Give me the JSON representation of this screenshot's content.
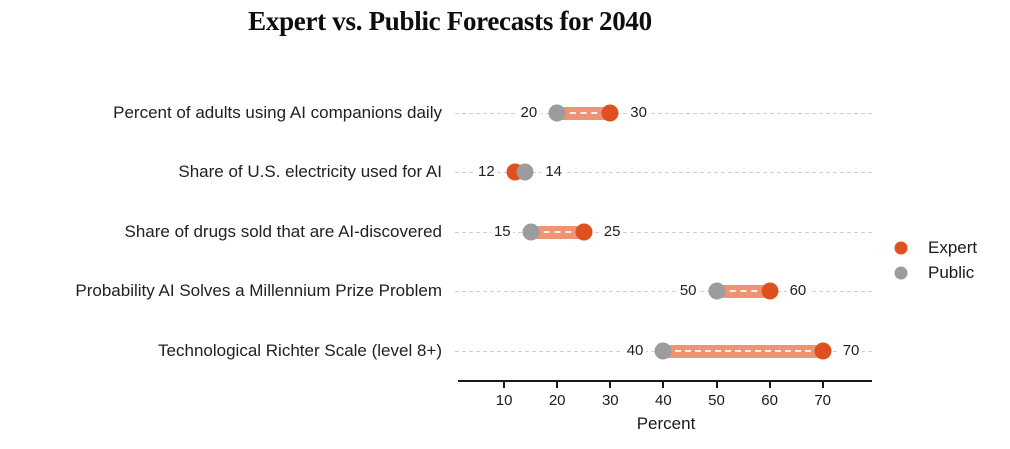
{
  "title": "Expert vs. Public Forecasts for 2040",
  "chart_data": {
    "type": "dumbbell",
    "title": "Expert vs. Public Forecasts for 2040",
    "categories": [
      "Percent of adults using AI companions daily",
      "Share of U.S. electricity used for AI",
      "Share of drugs sold that are AI-discovered",
      "Probability AI Solves a Millennium Prize Problem",
      "Technological Richter Scale (level 8+)"
    ],
    "series": [
      {
        "name": "Expert",
        "color": "#E0501E",
        "values": [
          30,
          12,
          25,
          60,
          70
        ]
      },
      {
        "name": "Public",
        "color": "#9C9C9C",
        "values": [
          20,
          14,
          15,
          50,
          40
        ]
      }
    ],
    "xlabel": "Percent",
    "x_ticks": [
      10,
      20,
      30,
      40,
      50,
      60,
      70
    ],
    "xlim": [
      0,
      79
    ],
    "grid": "horizontal-dashed-per-category",
    "legend_position": "right",
    "value_label_rule": "min value labeled left of leftmost dot, max value labeled right of rightmost dot"
  },
  "legend": {
    "items": [
      {
        "label": "Expert",
        "color": "#E0501E"
      },
      {
        "label": "Public",
        "color": "#9C9C9C"
      }
    ]
  },
  "colors": {
    "expert": "#E0501E",
    "public": "#9C9C9C",
    "band": "#EF9374",
    "gridline": "#CFCFCF",
    "axis": "#1A1A1A",
    "text": "#212121",
    "background": "#FFFFFF"
  }
}
